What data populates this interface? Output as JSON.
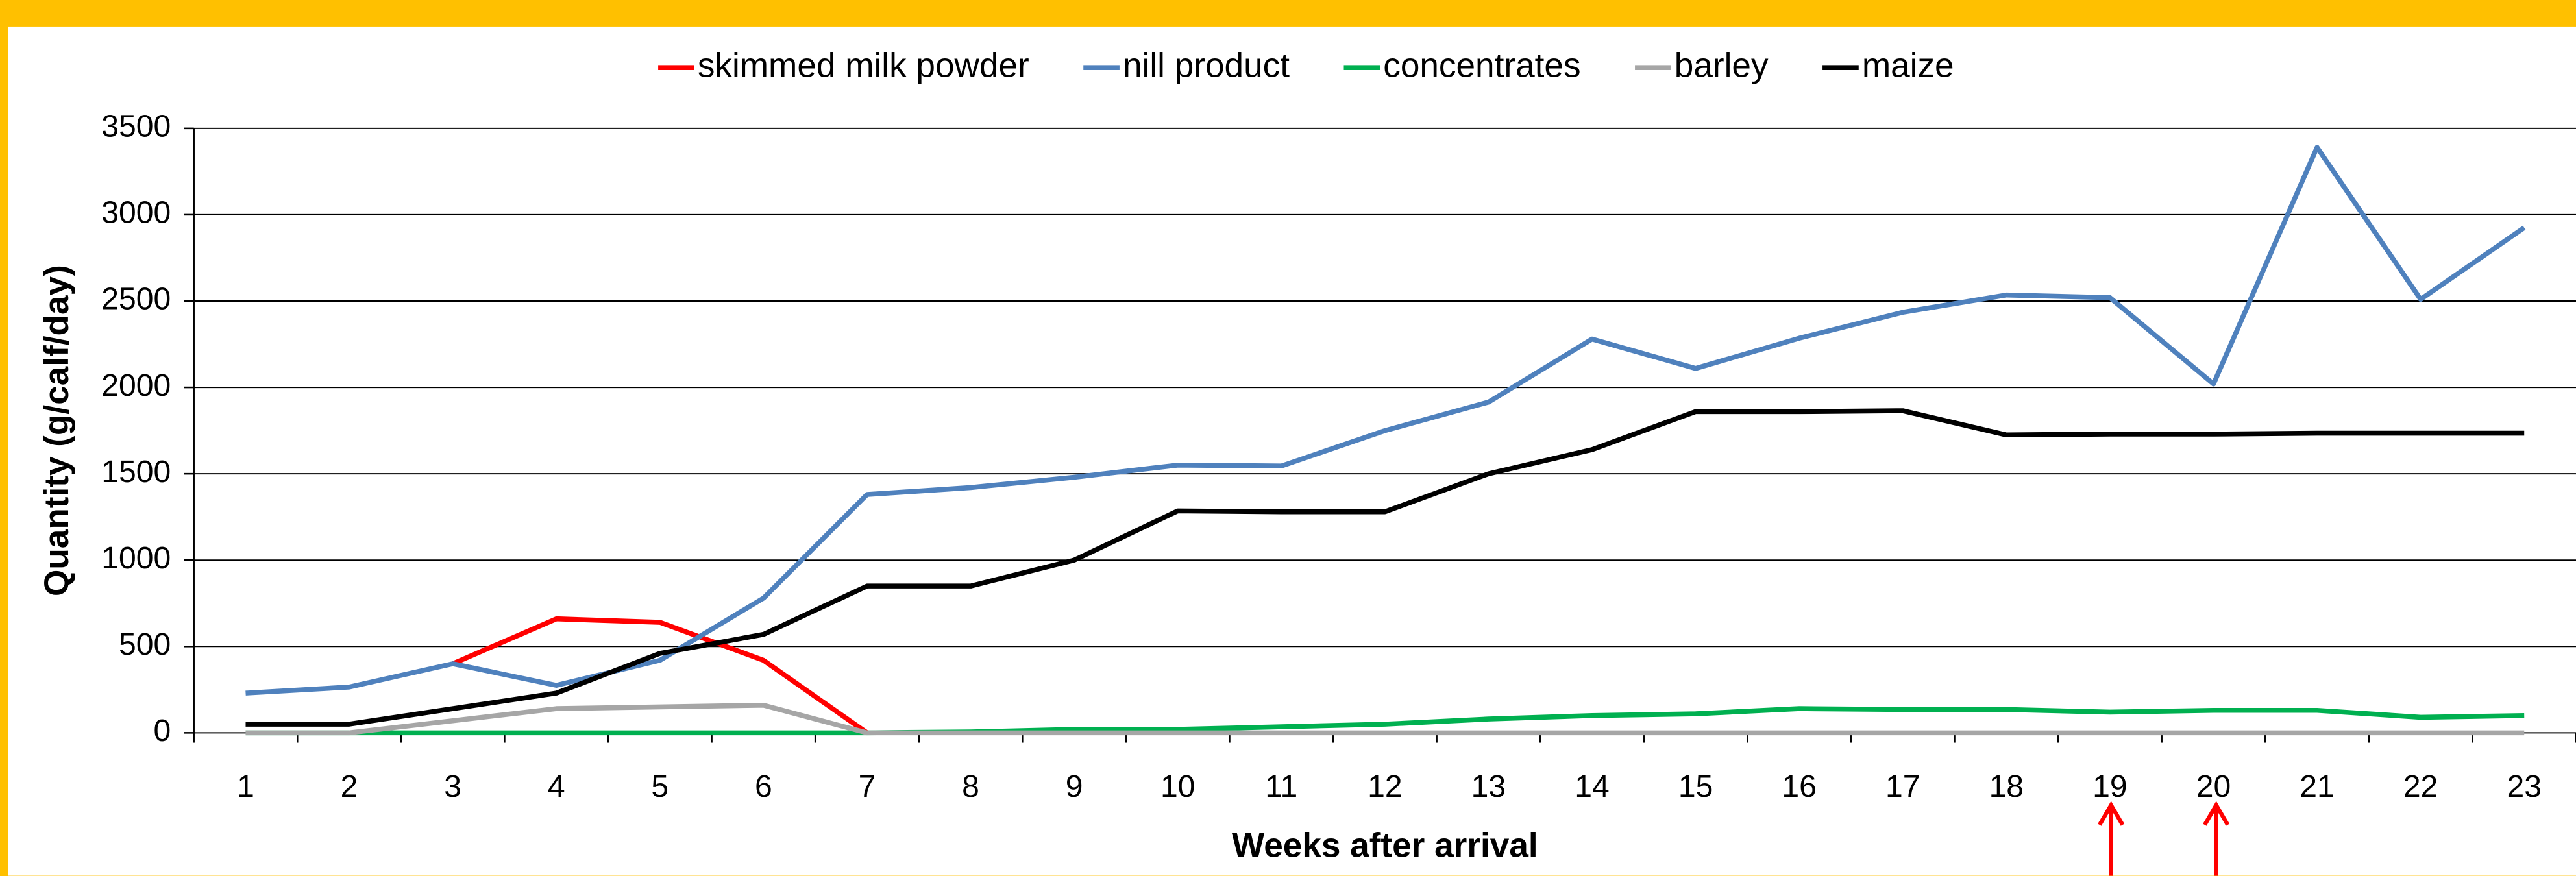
{
  "chart_data": {
    "type": "line",
    "x_label": "Weeks after arrival",
    "y_label": "Quantity (g/calf/day)",
    "categories": [
      1,
      2,
      3,
      4,
      5,
      6,
      7,
      8,
      9,
      10,
      11,
      12,
      13,
      14,
      15,
      16,
      17,
      18,
      19,
      20,
      21,
      22,
      23
    ],
    "series": [
      {
        "name": "skimmed milk powder",
        "color": "#ff0000",
        "values": [
          null,
          null,
          400,
          660,
          640,
          420,
          0,
          null,
          null,
          null,
          null,
          null,
          null,
          null,
          null,
          null,
          null,
          null,
          null,
          null,
          null,
          null,
          null
        ]
      },
      {
        "name": "nill product",
        "color": "#4f81bd",
        "values": [
          230,
          265,
          400,
          275,
          420,
          780,
          1380,
          1420,
          1480,
          1550,
          1545,
          1750,
          1915,
          2280,
          2110,
          2285,
          2435,
          2535,
          2520,
          2020,
          3390,
          2510,
          2925
        ]
      },
      {
        "name": "concentrates",
        "color": "#00b050",
        "values": [
          0,
          0,
          0,
          0,
          0,
          0,
          0,
          5,
          20,
          20,
          35,
          50,
          80,
          100,
          110,
          140,
          135,
          135,
          120,
          130,
          130,
          90,
          100
        ]
      },
      {
        "name": "barley",
        "color": "#a6a6a6",
        "values": [
          0,
          0,
          70,
          140,
          150,
          160,
          0,
          0,
          0,
          0,
          0,
          0,
          0,
          0,
          0,
          0,
          0,
          0,
          0,
          0,
          0,
          0,
          0
        ]
      },
      {
        "name": "maize",
        "color": "#000000",
        "values": [
          50,
          50,
          140,
          230,
          460,
          570,
          850,
          850,
          1000,
          1285,
          1280,
          1280,
          1500,
          1640,
          1860,
          1860,
          1865,
          1725,
          1730,
          1730,
          1735,
          1735,
          1735
        ]
      }
    ],
    "ylim": [
      0,
      3500
    ],
    "yticks": [
      0,
      500,
      1000,
      1500,
      2000,
      2500,
      3000,
      3500
    ],
    "grid": true,
    "legend": "top"
  }
}
